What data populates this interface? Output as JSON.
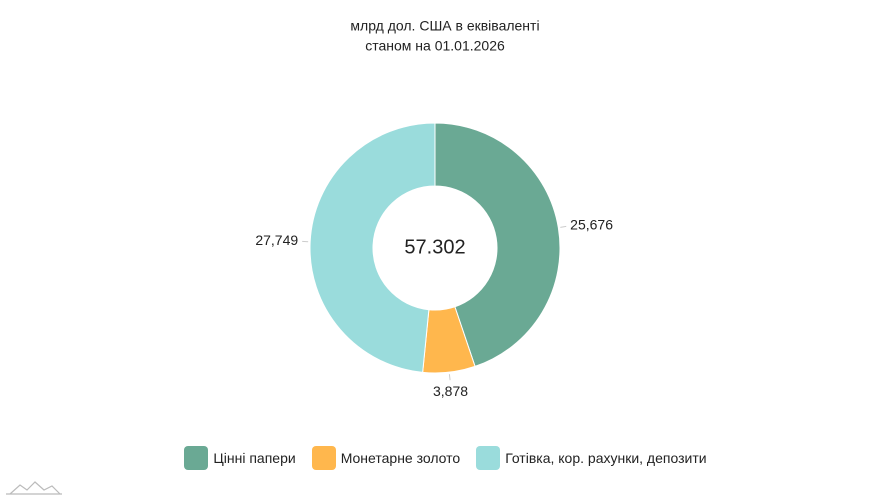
{
  "chart_data": {
    "type": "donut",
    "title": "млрд дол. США в еквіваленті",
    "subtitle": "станом на 01.01.2026",
    "total": 57.302,
    "categories": [
      "Цінні папери",
      "Монетарне золото",
      "Готівка, кор. рахунки, депозити"
    ],
    "values": [
      25.676,
      3.878,
      27.749
    ],
    "value_labels": [
      "25,676",
      "3,878",
      "27,749"
    ],
    "colors": [
      "#6aa994",
      "#ffb74d",
      "#9adcdc"
    ]
  }
}
